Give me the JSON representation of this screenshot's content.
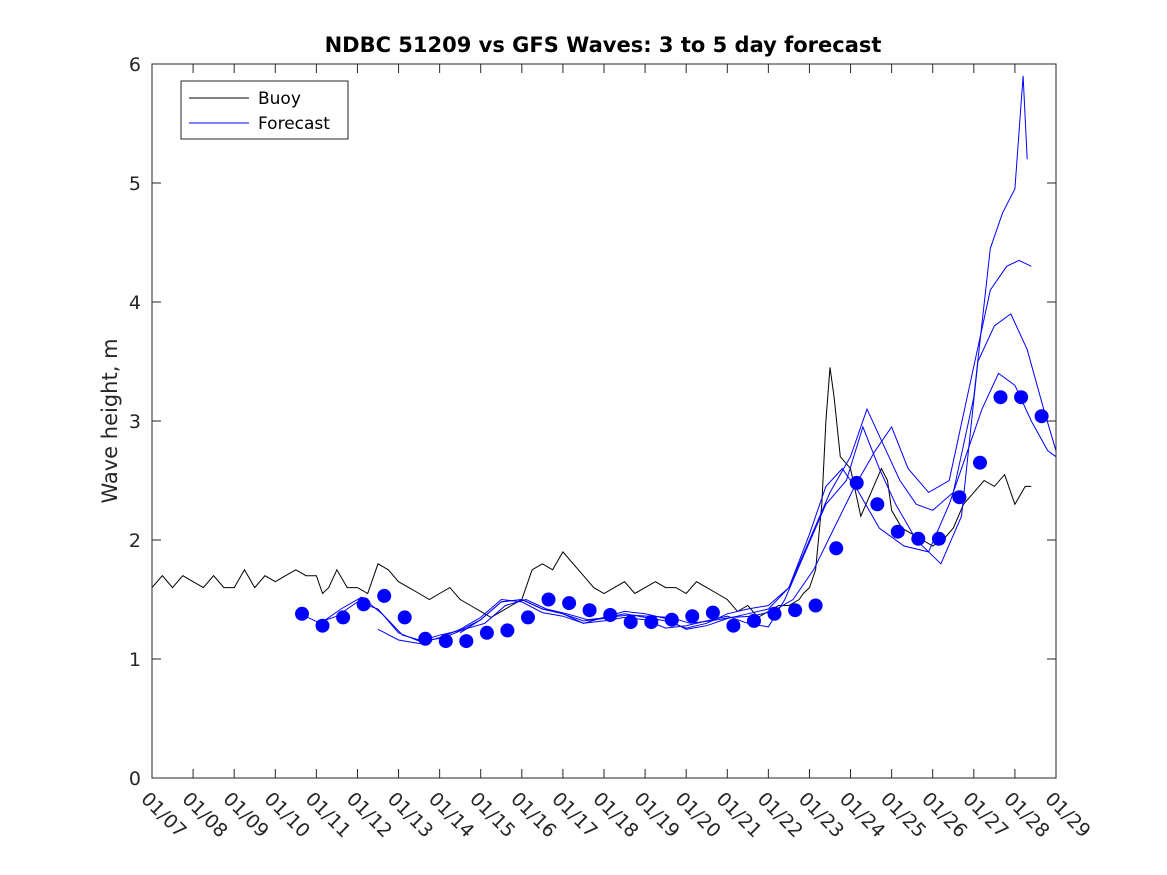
{
  "chart_data": {
    "type": "line",
    "title": "NDBC 51209 vs GFS Waves: 3 to 5 day forecast",
    "xlabel": "",
    "ylabel": "Wave height, m",
    "xlim": [
      0,
      22
    ],
    "ylim": [
      0,
      6
    ],
    "x_tick_labels": [
      "01/07",
      "01/08",
      "01/09",
      "01/10",
      "01/11",
      "01/12",
      "01/13",
      "01/14",
      "01/15",
      "01/16",
      "01/17",
      "01/18",
      "01/19",
      "01/20",
      "01/21",
      "01/22",
      "01/23",
      "01/24",
      "01/25",
      "01/26",
      "01/27",
      "01/28",
      "01/29"
    ],
    "y_ticks": [
      0,
      1,
      2,
      3,
      4,
      5,
      6
    ],
    "legend": {
      "placement": "top-left",
      "entries": [
        "Buoy",
        "Forecast"
      ]
    },
    "colors": {
      "buoy": "#000000",
      "forecast": "#0000ff"
    },
    "series": [
      {
        "name": "Buoy",
        "note": "x = days since 01/07, y = significant wave height (m)",
        "points": [
          [
            0.0,
            1.6
          ],
          [
            0.25,
            1.7
          ],
          [
            0.5,
            1.6
          ],
          [
            0.75,
            1.7
          ],
          [
            1.0,
            1.65
          ],
          [
            1.25,
            1.6
          ],
          [
            1.5,
            1.7
          ],
          [
            1.75,
            1.6
          ],
          [
            2.0,
            1.6
          ],
          [
            2.25,
            1.75
          ],
          [
            2.5,
            1.6
          ],
          [
            2.75,
            1.7
          ],
          [
            3.0,
            1.65
          ],
          [
            3.25,
            1.7
          ],
          [
            3.5,
            1.75
          ],
          [
            3.75,
            1.7
          ],
          [
            4.0,
            1.7
          ],
          [
            4.15,
            1.55
          ],
          [
            4.3,
            1.6
          ],
          [
            4.5,
            1.75
          ],
          [
            4.75,
            1.6
          ],
          [
            5.0,
            1.6
          ],
          [
            5.25,
            1.55
          ],
          [
            5.5,
            1.8
          ],
          [
            5.75,
            1.75
          ],
          [
            6.0,
            1.65
          ],
          [
            6.25,
            1.6
          ],
          [
            6.5,
            1.55
          ],
          [
            6.75,
            1.5
          ],
          [
            7.0,
            1.55
          ],
          [
            7.25,
            1.6
          ],
          [
            7.5,
            1.5
          ],
          [
            7.75,
            1.45
          ],
          [
            8.0,
            1.4
          ],
          [
            8.25,
            1.35
          ],
          [
            8.5,
            1.4
          ],
          [
            8.75,
            1.45
          ],
          [
            9.0,
            1.5
          ],
          [
            9.25,
            1.75
          ],
          [
            9.5,
            1.8
          ],
          [
            9.75,
            1.75
          ],
          [
            10.0,
            1.9
          ],
          [
            10.25,
            1.8
          ],
          [
            10.5,
            1.7
          ],
          [
            10.75,
            1.6
          ],
          [
            11.0,
            1.55
          ],
          [
            11.25,
            1.6
          ],
          [
            11.5,
            1.65
          ],
          [
            11.75,
            1.55
          ],
          [
            12.0,
            1.6
          ],
          [
            12.25,
            1.65
          ],
          [
            12.5,
            1.6
          ],
          [
            12.75,
            1.6
          ],
          [
            13.0,
            1.55
          ],
          [
            13.25,
            1.65
          ],
          [
            13.5,
            1.6
          ],
          [
            13.75,
            1.55
          ],
          [
            14.0,
            1.5
          ],
          [
            14.25,
            1.4
          ],
          [
            14.5,
            1.45
          ],
          [
            14.75,
            1.35
          ],
          [
            15.0,
            1.4
          ],
          [
            15.25,
            1.45
          ],
          [
            15.5,
            1.45
          ],
          [
            15.75,
            1.5
          ],
          [
            15.85,
            1.55
          ],
          [
            16.0,
            1.6
          ],
          [
            16.15,
            1.75
          ],
          [
            16.3,
            2.3
          ],
          [
            16.4,
            3.0
          ],
          [
            16.5,
            3.45
          ],
          [
            16.6,
            3.2
          ],
          [
            16.75,
            2.7
          ],
          [
            17.0,
            2.6
          ],
          [
            17.25,
            2.2
          ],
          [
            17.5,
            2.4
          ],
          [
            17.75,
            2.6
          ],
          [
            17.9,
            2.5
          ],
          [
            18.0,
            2.25
          ],
          [
            18.25,
            2.1
          ],
          [
            18.5,
            2.05
          ],
          [
            18.75,
            2.0
          ],
          [
            19.0,
            1.95
          ],
          [
            19.25,
            2.0
          ],
          [
            19.5,
            2.1
          ],
          [
            19.75,
            2.3
          ],
          [
            20.0,
            2.4
          ],
          [
            20.25,
            2.5
          ],
          [
            20.5,
            2.45
          ],
          [
            20.75,
            2.55
          ],
          [
            21.0,
            2.3
          ],
          [
            21.25,
            2.45
          ],
          [
            21.4,
            2.45
          ]
        ]
      },
      {
        "name": "Forecast",
        "note": "four forecast traces (blue lines)",
        "traces": [
          [
            [
              3.6,
              1.38
            ],
            [
              4.1,
              1.3
            ],
            [
              4.6,
              1.42
            ],
            [
              5.1,
              1.52
            ],
            [
              5.6,
              1.38
            ],
            [
              6.1,
              1.2
            ],
            [
              6.6,
              1.15
            ],
            [
              7.1,
              1.18
            ],
            [
              7.6,
              1.25
            ],
            [
              8.1,
              1.3
            ],
            [
              8.6,
              1.45
            ],
            [
              9.1,
              1.5
            ],
            [
              9.6,
              1.42
            ],
            [
              10.1,
              1.38
            ],
            [
              10.6,
              1.33
            ],
            [
              11.1,
              1.35
            ],
            [
              11.6,
              1.37
            ],
            [
              12.1,
              1.36
            ],
            [
              12.6,
              1.35
            ],
            [
              13.1,
              1.3
            ],
            [
              13.6,
              1.32
            ],
            [
              14.1,
              1.35
            ],
            [
              14.6,
              1.36
            ],
            [
              15.1,
              1.4
            ],
            [
              15.6,
              1.5
            ],
            [
              16.1,
              1.75
            ],
            [
              16.6,
              2.1
            ],
            [
              17.1,
              2.45
            ],
            [
              17.6,
              2.75
            ],
            [
              18.0,
              2.95
            ],
            [
              18.4,
              2.6
            ],
            [
              18.9,
              2.4
            ],
            [
              19.4,
              2.5
            ],
            [
              19.9,
              3.3
            ],
            [
              20.4,
              4.1
            ],
            [
              20.8,
              4.3
            ],
            [
              21.1,
              4.35
            ],
            [
              21.4,
              4.3
            ]
          ],
          [
            [
              4.0,
              1.3
            ],
            [
              4.5,
              1.36
            ],
            [
              5.0,
              1.48
            ],
            [
              5.5,
              1.42
            ],
            [
              6.0,
              1.22
            ],
            [
              6.5,
              1.15
            ],
            [
              7.0,
              1.2
            ],
            [
              7.5,
              1.24
            ],
            [
              8.0,
              1.33
            ],
            [
              8.5,
              1.48
            ],
            [
              9.0,
              1.5
            ],
            [
              9.5,
              1.42
            ],
            [
              10.0,
              1.38
            ],
            [
              10.5,
              1.32
            ],
            [
              11.0,
              1.34
            ],
            [
              11.5,
              1.38
            ],
            [
              12.0,
              1.35
            ],
            [
              12.5,
              1.32
            ],
            [
              13.0,
              1.26
            ],
            [
              13.5,
              1.3
            ],
            [
              14.0,
              1.38
            ],
            [
              14.5,
              1.42
            ],
            [
              15.0,
              1.45
            ],
            [
              15.5,
              1.6
            ],
            [
              16.0,
              2.0
            ],
            [
              16.5,
              2.4
            ],
            [
              17.0,
              2.7
            ],
            [
              17.4,
              3.1
            ],
            [
              17.8,
              2.8
            ],
            [
              18.2,
              2.5
            ],
            [
              18.6,
              2.3
            ],
            [
              19.0,
              2.25
            ],
            [
              19.5,
              2.4
            ],
            [
              20.0,
              3.2
            ],
            [
              20.4,
              4.45
            ],
            [
              20.7,
              4.75
            ],
            [
              21.0,
              4.95
            ],
            [
              21.2,
              5.9
            ],
            [
              21.3,
              5.2
            ]
          ],
          [
            [
              5.5,
              1.25
            ],
            [
              6.0,
              1.16
            ],
            [
              6.5,
              1.13
            ],
            [
              7.0,
              1.18
            ],
            [
              7.5,
              1.25
            ],
            [
              8.0,
              1.35
            ],
            [
              8.5,
              1.5
            ],
            [
              9.0,
              1.48
            ],
            [
              9.5,
              1.39
            ],
            [
              10.0,
              1.36
            ],
            [
              10.5,
              1.3
            ],
            [
              11.0,
              1.32
            ],
            [
              11.5,
              1.35
            ],
            [
              12.0,
              1.33
            ],
            [
              12.5,
              1.26
            ],
            [
              13.0,
              1.28
            ],
            [
              13.5,
              1.32
            ],
            [
              14.0,
              1.36
            ],
            [
              14.5,
              1.3
            ],
            [
              15.0,
              1.27
            ],
            [
              15.4,
              1.5
            ],
            [
              15.9,
              1.9
            ],
            [
              16.4,
              2.3
            ],
            [
              16.9,
              2.5
            ],
            [
              17.3,
              2.95
            ],
            [
              17.7,
              2.6
            ],
            [
              18.1,
              2.3
            ],
            [
              18.6,
              2.0
            ],
            [
              19.2,
              1.8
            ],
            [
              19.7,
              2.2
            ],
            [
              20.1,
              3.5
            ],
            [
              20.5,
              3.8
            ],
            [
              20.9,
              3.9
            ],
            [
              21.3,
              3.6
            ],
            [
              21.7,
              3.1
            ],
            [
              22.0,
              2.75
            ]
          ],
          [
            [
              7.5,
              1.22
            ],
            [
              8.0,
              1.33
            ],
            [
              8.5,
              1.48
            ],
            [
              9.0,
              1.5
            ],
            [
              9.5,
              1.42
            ],
            [
              10.0,
              1.38
            ],
            [
              10.5,
              1.3
            ],
            [
              11.0,
              1.35
            ],
            [
              11.5,
              1.4
            ],
            [
              12.0,
              1.38
            ],
            [
              12.5,
              1.34
            ],
            [
              13.0,
              1.25
            ],
            [
              13.5,
              1.28
            ],
            [
              14.0,
              1.34
            ],
            [
              14.5,
              1.38
            ],
            [
              15.0,
              1.42
            ],
            [
              15.5,
              1.6
            ],
            [
              16.0,
              2.05
            ],
            [
              16.4,
              2.45
            ],
            [
              16.8,
              2.6
            ],
            [
              17.2,
              2.4
            ],
            [
              17.7,
              2.1
            ],
            [
              18.3,
              1.95
            ],
            [
              18.9,
              1.9
            ],
            [
              19.4,
              2.3
            ],
            [
              19.8,
              2.7
            ],
            [
              20.2,
              3.1
            ],
            [
              20.6,
              3.4
            ],
            [
              21.0,
              3.3
            ],
            [
              21.4,
              3.0
            ],
            [
              21.8,
              2.75
            ],
            [
              22.0,
              2.7
            ]
          ]
        ]
      },
      {
        "name": "Forecast markers",
        "points": [
          [
            3.65,
            1.38
          ],
          [
            4.15,
            1.28
          ],
          [
            4.65,
            1.35
          ],
          [
            5.15,
            1.46
          ],
          [
            5.65,
            1.53
          ],
          [
            6.15,
            1.35
          ],
          [
            6.65,
            1.17
          ],
          [
            7.15,
            1.15
          ],
          [
            7.65,
            1.15
          ],
          [
            8.15,
            1.22
          ],
          [
            8.65,
            1.24
          ],
          [
            9.15,
            1.35
          ],
          [
            9.65,
            1.5
          ],
          [
            10.15,
            1.47
          ],
          [
            10.65,
            1.41
          ],
          [
            11.15,
            1.37
          ],
          [
            11.65,
            1.31
          ],
          [
            12.15,
            1.31
          ],
          [
            12.65,
            1.33
          ],
          [
            13.15,
            1.36
          ],
          [
            13.65,
            1.39
          ],
          [
            14.15,
            1.28
          ],
          [
            14.65,
            1.32
          ],
          [
            15.15,
            1.38
          ],
          [
            15.65,
            1.41
          ],
          [
            16.15,
            1.45
          ],
          [
            16.65,
            1.93
          ],
          [
            17.15,
            2.48
          ],
          [
            17.65,
            2.3
          ],
          [
            18.15,
            2.07
          ],
          [
            18.65,
            2.01
          ],
          [
            19.15,
            2.01
          ],
          [
            19.65,
            2.36
          ],
          [
            20.15,
            2.65
          ],
          [
            20.65,
            3.2
          ],
          [
            21.15,
            3.2
          ],
          [
            21.65,
            3.04
          ]
        ]
      }
    ]
  }
}
